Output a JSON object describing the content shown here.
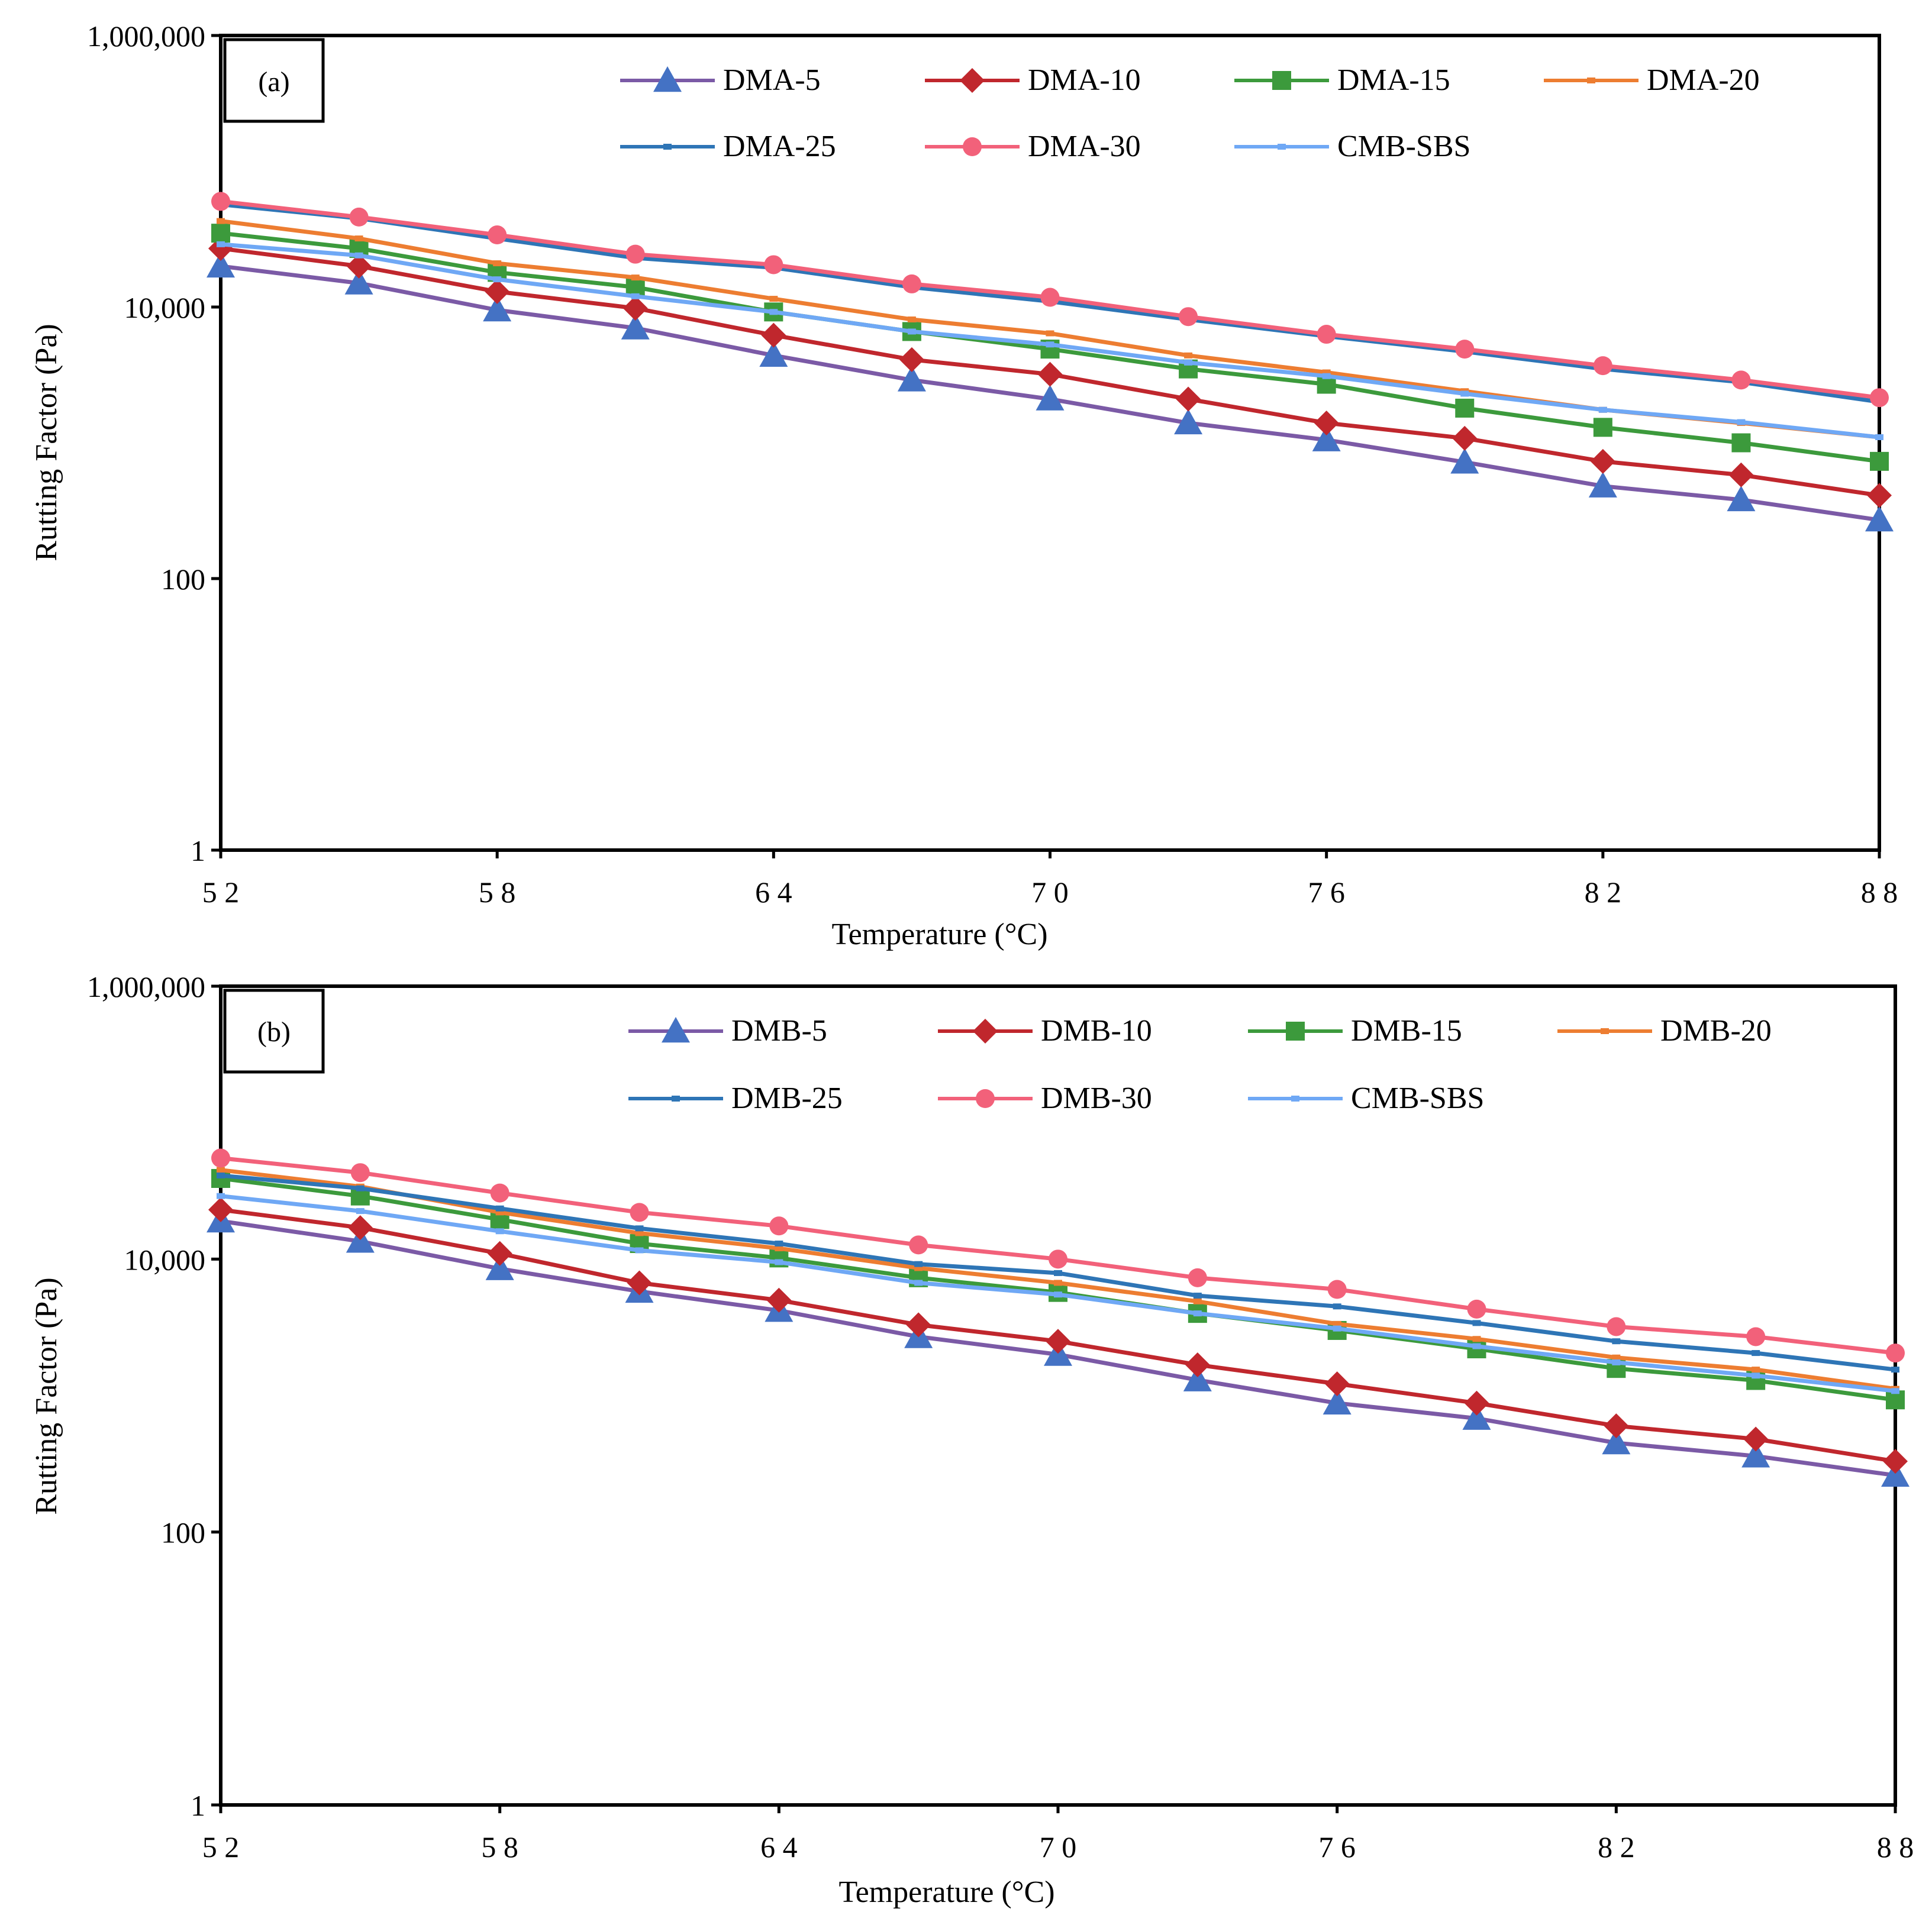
{
  "chart_data": [
    {
      "type": "line",
      "panel_label": "(a)",
      "xlabel": "Temperature (°C)",
      "ylabel": "Rutting Factor (Pa)",
      "yscale": "log",
      "ylim": [
        1,
        1000000
      ],
      "xlim": [
        52,
        88
      ],
      "xticks": [
        52,
        58,
        64,
        70,
        76,
        82,
        88
      ],
      "xtick_labels": [
        "5 2",
        "5 8",
        "6 4",
        "7 0",
        "7 6",
        "8 2",
        "8 8"
      ],
      "yticks": [
        1,
        100,
        10000,
        1000000
      ],
      "ytick_labels": [
        "1",
        "100",
        "10,000",
        "1,000,000"
      ],
      "x": [
        52,
        55,
        58,
        61,
        64,
        67,
        70,
        73,
        76,
        79,
        82,
        85,
        88
      ],
      "series": [
        {
          "name": "DMA-5",
          "color": "#7B5AA6",
          "marker_color": "#4472C4",
          "marker": "triangle",
          "values": [
            20000,
            15000,
            9500,
            7000,
            4400,
            2900,
            2100,
            1400,
            1050,
            720,
            480,
            380,
            270
          ]
        },
        {
          "name": "DMA-10",
          "color": "#C0272D",
          "marker_color": "#C0272D",
          "marker": "diamond",
          "values": [
            27000,
            20000,
            13000,
            9800,
            6200,
            4100,
            3200,
            2100,
            1400,
            1080,
            730,
            580,
            410
          ]
        },
        {
          "name": "DMA-15",
          "color": "#3C9A3C",
          "marker_color": "#3C9A3C",
          "marker": "square",
          "values": [
            35000,
            27000,
            18000,
            14000,
            9200,
            6600,
            4900,
            3500,
            2700,
            1800,
            1300,
            1000,
            730
          ]
        },
        {
          "name": "DMA-20",
          "color": "#ED7D31",
          "marker_color": "#ED7D31",
          "marker": "dash",
          "values": [
            43000,
            32000,
            21000,
            16500,
            11500,
            8100,
            6400,
            4400,
            3300,
            2400,
            1750,
            1400,
            1100
          ]
        },
        {
          "name": "DMA-25",
          "color": "#2E75B6",
          "marker_color": "#2E75B6",
          "marker": "dash",
          "values": [
            57000,
            45000,
            32000,
            23000,
            19500,
            14000,
            11000,
            8100,
            6100,
            4700,
            3500,
            2800,
            2000
          ]
        },
        {
          "name": "DMA-30",
          "color": "#F2617A",
          "marker_color": "#F2617A",
          "marker": "circle",
          "values": [
            60000,
            46000,
            34000,
            24500,
            20500,
            14800,
            11800,
            8500,
            6300,
            4900,
            3700,
            2900,
            2150
          ]
        },
        {
          "name": "CMB-SBS",
          "color": "#6FA8F5",
          "marker_color": "#6FA8F5",
          "marker": "dash",
          "values": [
            29000,
            24000,
            16000,
            12000,
            9200,
            6600,
            5300,
            3900,
            3100,
            2300,
            1750,
            1420,
            1100
          ]
        }
      ]
    },
    {
      "type": "line",
      "panel_label": "(b)",
      "xlabel": "Temperature (°C)",
      "ylabel": "Rutting Factor (Pa)",
      "yscale": "log",
      "ylim": [
        1,
        1000000
      ],
      "xlim": [
        52,
        88
      ],
      "xticks": [
        52,
        58,
        64,
        70,
        76,
        82,
        88
      ],
      "xtick_labels": [
        "5 2",
        "5 8",
        "6 4",
        "7 0",
        "7 6",
        "8 2",
        "8 8"
      ],
      "yticks": [
        1,
        100,
        10000,
        1000000
      ],
      "ytick_labels": [
        "1",
        "100",
        "10,000",
        "1,000,000"
      ],
      "x": [
        52,
        55,
        58,
        61,
        64,
        67,
        70,
        73,
        76,
        79,
        82,
        85,
        88
      ],
      "series": [
        {
          "name": "DMB-5",
          "color": "#7B5AA6",
          "marker_color": "#4472C4",
          "marker": "triangle",
          "values": [
            19000,
            13500,
            8500,
            5800,
            4200,
            2700,
            2000,
            1300,
            880,
            680,
            450,
            360,
            260
          ]
        },
        {
          "name": "DMB-10",
          "color": "#C0272D",
          "marker_color": "#C0272D",
          "marker": "diamond",
          "values": [
            23000,
            17000,
            11000,
            6700,
            5000,
            3300,
            2500,
            1680,
            1220,
            880,
            600,
            480,
            330
          ]
        },
        {
          "name": "DMB-15",
          "color": "#3C9A3C",
          "marker_color": "#3C9A3C",
          "marker": "square",
          "values": [
            39000,
            29000,
            19500,
            13000,
            10200,
            7300,
            5700,
            4000,
            3000,
            2200,
            1580,
            1290,
            930
          ]
        },
        {
          "name": "DMB-20",
          "color": "#ED7D31",
          "marker_color": "#ED7D31",
          "marker": "dash",
          "values": [
            45000,
            34000,
            22000,
            15500,
            12000,
            8600,
            6700,
            4900,
            3350,
            2600,
            1900,
            1550,
            1120
          ]
        },
        {
          "name": "DMB-25",
          "color": "#2E75B6",
          "marker_color": "#2E75B6",
          "marker": "dash",
          "values": [
            41000,
            33000,
            23500,
            16800,
            13000,
            9200,
            7900,
            5400,
            4500,
            3400,
            2500,
            2050,
            1550
          ]
        },
        {
          "name": "DMB-30",
          "color": "#F2617A",
          "marker_color": "#F2617A",
          "marker": "circle",
          "values": [
            55000,
            43000,
            30500,
            22000,
            17500,
            12700,
            10000,
            7300,
            6000,
            4300,
            3200,
            2700,
            2050
          ]
        },
        {
          "name": "CMB-SBS",
          "color": "#6FA8F5",
          "marker_color": "#6FA8F5",
          "marker": "dash",
          "values": [
            29000,
            22500,
            16000,
            11600,
            9500,
            6700,
            5500,
            4000,
            3100,
            2300,
            1750,
            1400,
            1080
          ]
        }
      ]
    }
  ]
}
